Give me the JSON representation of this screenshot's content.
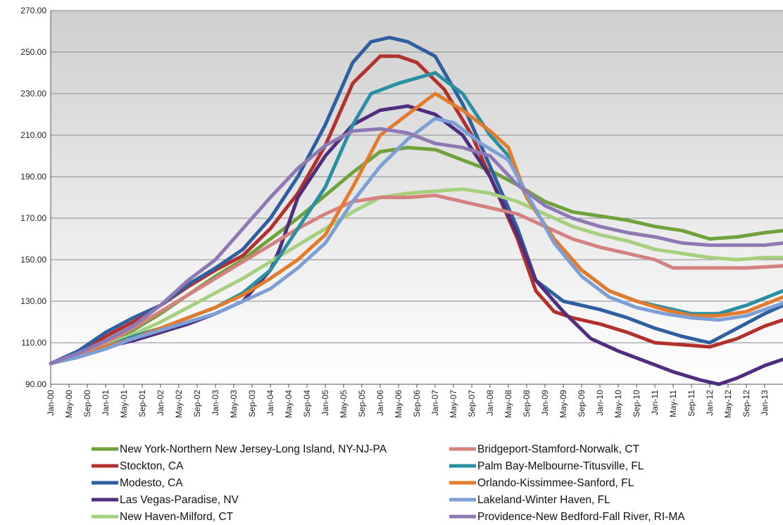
{
  "chart_data": {
    "type": "line",
    "title": "",
    "xlabel": "",
    "ylabel": "",
    "ylim": [
      90,
      270
    ],
    "yticks": [
      "90.00",
      "110.00",
      "130.00",
      "150.00",
      "170.00",
      "190.00",
      "210.00",
      "230.00",
      "250.00",
      "270.00"
    ],
    "xticks": [
      "Jan-00",
      "May-00",
      "Sep-00",
      "Jan-01",
      "May-01",
      "Sep-01",
      "Jan-02",
      "May-02",
      "Sep-02",
      "Jan-03",
      "May-03",
      "Sep-03",
      "Jan-04",
      "May-04",
      "Sep-04",
      "Jan-05",
      "May-05",
      "Sep-05",
      "Jan-06",
      "May-06",
      "Sep-06",
      "Jan-07",
      "May-07",
      "Sep-07",
      "Jan-08",
      "May-08",
      "Sep-08",
      "Jan-09",
      "May-09",
      "Sep-09",
      "Jan-10",
      "May-10",
      "Sep-10",
      "Jan-11",
      "May-11",
      "Sep-11",
      "Jan-12",
      "May-12",
      "Sep-12",
      "Jan-13"
    ],
    "x_index_note": "x values are month indices: 0 = Jan-00, 4 = May-00, ... 156 = Jan-13",
    "x_range": [
      0,
      160
    ],
    "grid": true,
    "legend_position": "bottom",
    "series": [
      {
        "name": "New York-Northern New Jersey-Long Island, NY-NJ-PA",
        "color": "#6fa23a",
        "points": [
          [
            0,
            100
          ],
          [
            6,
            104
          ],
          [
            12,
            110
          ],
          [
            18,
            116
          ],
          [
            24,
            124
          ],
          [
            30,
            133
          ],
          [
            36,
            142
          ],
          [
            42,
            150
          ],
          [
            48,
            160
          ],
          [
            54,
            170
          ],
          [
            60,
            181
          ],
          [
            66,
            192
          ],
          [
            72,
            202
          ],
          [
            78,
            204
          ],
          [
            84,
            203
          ],
          [
            90,
            198
          ],
          [
            96,
            193
          ],
          [
            102,
            186
          ],
          [
            108,
            178
          ],
          [
            114,
            173
          ],
          [
            120,
            171
          ],
          [
            126,
            169
          ],
          [
            132,
            166
          ],
          [
            138,
            164
          ],
          [
            144,
            160
          ],
          [
            150,
            161
          ],
          [
            156,
            163
          ],
          [
            160,
            164
          ]
        ]
      },
      {
        "name": "Stockton, CA",
        "color": "#b3312d",
        "points": [
          [
            0,
            100
          ],
          [
            6,
            105
          ],
          [
            12,
            113
          ],
          [
            18,
            120
          ],
          [
            24,
            128
          ],
          [
            30,
            137
          ],
          [
            36,
            145
          ],
          [
            42,
            152
          ],
          [
            48,
            165
          ],
          [
            54,
            182
          ],
          [
            60,
            205
          ],
          [
            66,
            235
          ],
          [
            72,
            248
          ],
          [
            76,
            248
          ],
          [
            80,
            245
          ],
          [
            86,
            232
          ],
          [
            92,
            210
          ],
          [
            98,
            180
          ],
          [
            102,
            160
          ],
          [
            106,
            135
          ],
          [
            110,
            125
          ],
          [
            114,
            122
          ],
          [
            120,
            119
          ],
          [
            126,
            115
          ],
          [
            132,
            110
          ],
          [
            138,
            109
          ],
          [
            144,
            108
          ],
          [
            150,
            112
          ],
          [
            156,
            118
          ],
          [
            160,
            121
          ]
        ]
      },
      {
        "name": "Modesto, CA",
        "color": "#2e5fa0",
        "points": [
          [
            0,
            100
          ],
          [
            6,
            106
          ],
          [
            12,
            115
          ],
          [
            18,
            122
          ],
          [
            24,
            128
          ],
          [
            30,
            138
          ],
          [
            36,
            146
          ],
          [
            42,
            155
          ],
          [
            48,
            170
          ],
          [
            54,
            190
          ],
          [
            60,
            215
          ],
          [
            66,
            245
          ],
          [
            70,
            255
          ],
          [
            74,
            257
          ],
          [
            78,
            255
          ],
          [
            84,
            248
          ],
          [
            90,
            225
          ],
          [
            96,
            195
          ],
          [
            102,
            165
          ],
          [
            106,
            140
          ],
          [
            112,
            130
          ],
          [
            120,
            126
          ],
          [
            126,
            122
          ],
          [
            132,
            117
          ],
          [
            138,
            113
          ],
          [
            144,
            110
          ],
          [
            150,
            117
          ],
          [
            156,
            124
          ],
          [
            160,
            128
          ]
        ]
      },
      {
        "name": "Las Vegas-Paradise, NV",
        "color": "#4f2d7f",
        "points": [
          [
            0,
            100
          ],
          [
            6,
            104
          ],
          [
            12,
            108
          ],
          [
            18,
            111
          ],
          [
            24,
            115
          ],
          [
            30,
            119
          ],
          [
            36,
            124
          ],
          [
            42,
            130
          ],
          [
            48,
            145
          ],
          [
            50,
            155
          ],
          [
            54,
            180
          ],
          [
            60,
            200
          ],
          [
            66,
            215
          ],
          [
            72,
            222
          ],
          [
            78,
            224
          ],
          [
            84,
            220
          ],
          [
            90,
            210
          ],
          [
            96,
            190
          ],
          [
            102,
            162
          ],
          [
            106,
            140
          ],
          [
            112,
            125
          ],
          [
            118,
            112
          ],
          [
            124,
            106
          ],
          [
            130,
            101
          ],
          [
            136,
            96
          ],
          [
            142,
            92
          ],
          [
            146,
            90
          ],
          [
            150,
            93
          ],
          [
            156,
            99
          ],
          [
            160,
            102
          ]
        ]
      },
      {
        "name": "New Haven-Milford, CT",
        "color": "#a5d07d",
        "points": [
          [
            0,
            100
          ],
          [
            6,
            104
          ],
          [
            12,
            109
          ],
          [
            18,
            114
          ],
          [
            24,
            120
          ],
          [
            30,
            127
          ],
          [
            36,
            134
          ],
          [
            42,
            141
          ],
          [
            48,
            149
          ],
          [
            54,
            157
          ],
          [
            60,
            165
          ],
          [
            66,
            173
          ],
          [
            72,
            180
          ],
          [
            78,
            182
          ],
          [
            84,
            183
          ],
          [
            90,
            184
          ],
          [
            96,
            182
          ],
          [
            102,
            178
          ],
          [
            108,
            172
          ],
          [
            114,
            166
          ],
          [
            120,
            162
          ],
          [
            126,
            159
          ],
          [
            132,
            155
          ],
          [
            138,
            153
          ],
          [
            144,
            151
          ],
          [
            150,
            150
          ],
          [
            156,
            151
          ],
          [
            160,
            151
          ]
        ]
      },
      {
        "name": "Bridgeport-Stamford-Norwalk, CT",
        "color": "#d4827f",
        "points": [
          [
            0,
            100
          ],
          [
            6,
            104
          ],
          [
            12,
            110
          ],
          [
            18,
            117
          ],
          [
            24,
            125
          ],
          [
            30,
            133
          ],
          [
            36,
            141
          ],
          [
            42,
            149
          ],
          [
            48,
            157
          ],
          [
            54,
            165
          ],
          [
            60,
            172
          ],
          [
            66,
            178
          ],
          [
            72,
            180
          ],
          [
            78,
            180
          ],
          [
            84,
            181
          ],
          [
            90,
            178
          ],
          [
            96,
            175
          ],
          [
            102,
            172
          ],
          [
            108,
            166
          ],
          [
            114,
            160
          ],
          [
            120,
            156
          ],
          [
            126,
            153
          ],
          [
            132,
            150
          ],
          [
            136,
            146
          ],
          [
            140,
            146
          ],
          [
            146,
            146
          ],
          [
            152,
            146
          ],
          [
            160,
            147
          ]
        ]
      },
      {
        "name": "Palm Bay-Melbourne-Titusville, FL",
        "color": "#2a8fa3",
        "points": [
          [
            0,
            100
          ],
          [
            6,
            103
          ],
          [
            12,
            108
          ],
          [
            18,
            113
          ],
          [
            24,
            117
          ],
          [
            30,
            122
          ],
          [
            36,
            127
          ],
          [
            42,
            134
          ],
          [
            48,
            145
          ],
          [
            54,
            165
          ],
          [
            60,
            185
          ],
          [
            66,
            215
          ],
          [
            70,
            230
          ],
          [
            76,
            235
          ],
          [
            84,
            240
          ],
          [
            90,
            230
          ],
          [
            96,
            210
          ],
          [
            100,
            200
          ],
          [
            104,
            180
          ],
          [
            110,
            160
          ],
          [
            116,
            145
          ],
          [
            122,
            135
          ],
          [
            128,
            130
          ],
          [
            134,
            127
          ],
          [
            140,
            124
          ],
          [
            146,
            124
          ],
          [
            152,
            128
          ],
          [
            160,
            135
          ]
        ]
      },
      {
        "name": "Orlando-Kissimmee-Sanford, FL",
        "color": "#e27b2c",
        "points": [
          [
            0,
            100
          ],
          [
            6,
            103
          ],
          [
            12,
            108
          ],
          [
            18,
            112
          ],
          [
            24,
            117
          ],
          [
            30,
            122
          ],
          [
            36,
            127
          ],
          [
            42,
            133
          ],
          [
            48,
            141
          ],
          [
            54,
            150
          ],
          [
            60,
            162
          ],
          [
            66,
            185
          ],
          [
            72,
            210
          ],
          [
            78,
            220
          ],
          [
            84,
            230
          ],
          [
            90,
            222
          ],
          [
            96,
            212
          ],
          [
            100,
            204
          ],
          [
            104,
            180
          ],
          [
            110,
            160
          ],
          [
            116,
            145
          ],
          [
            122,
            135
          ],
          [
            128,
            130
          ],
          [
            134,
            126
          ],
          [
            140,
            123
          ],
          [
            146,
            123
          ],
          [
            152,
            125
          ],
          [
            160,
            132
          ]
        ]
      },
      {
        "name": "Lakeland-Winter Haven, FL",
        "color": "#7c9fd6",
        "points": [
          [
            0,
            100
          ],
          [
            6,
            103
          ],
          [
            12,
            107
          ],
          [
            18,
            112
          ],
          [
            24,
            116
          ],
          [
            30,
            120
          ],
          [
            36,
            124
          ],
          [
            42,
            130
          ],
          [
            48,
            136
          ],
          [
            54,
            146
          ],
          [
            60,
            158
          ],
          [
            66,
            178
          ],
          [
            72,
            195
          ],
          [
            78,
            208
          ],
          [
            84,
            218
          ],
          [
            88,
            216
          ],
          [
            94,
            206
          ],
          [
            100,
            198
          ],
          [
            104,
            182
          ],
          [
            110,
            158
          ],
          [
            116,
            142
          ],
          [
            122,
            132
          ],
          [
            128,
            127
          ],
          [
            134,
            124
          ],
          [
            140,
            122
          ],
          [
            146,
            121
          ],
          [
            152,
            123
          ],
          [
            160,
            129
          ]
        ]
      },
      {
        "name": "Providence-New Bedford-Fall River, RI-MA",
        "color": "#8f79b5",
        "points": [
          [
            0,
            100
          ],
          [
            6,
            105
          ],
          [
            12,
            111
          ],
          [
            18,
            118
          ],
          [
            24,
            128
          ],
          [
            30,
            140
          ],
          [
            36,
            150
          ],
          [
            42,
            165
          ],
          [
            48,
            180
          ],
          [
            54,
            194
          ],
          [
            60,
            205
          ],
          [
            66,
            212
          ],
          [
            72,
            213
          ],
          [
            78,
            211
          ],
          [
            84,
            206
          ],
          [
            90,
            204
          ],
          [
            96,
            200
          ],
          [
            102,
            186
          ],
          [
            108,
            176
          ],
          [
            114,
            170
          ],
          [
            120,
            166
          ],
          [
            126,
            163
          ],
          [
            132,
            161
          ],
          [
            138,
            158
          ],
          [
            144,
            157
          ],
          [
            150,
            157
          ],
          [
            156,
            157
          ],
          [
            160,
            158
          ]
        ]
      }
    ]
  }
}
